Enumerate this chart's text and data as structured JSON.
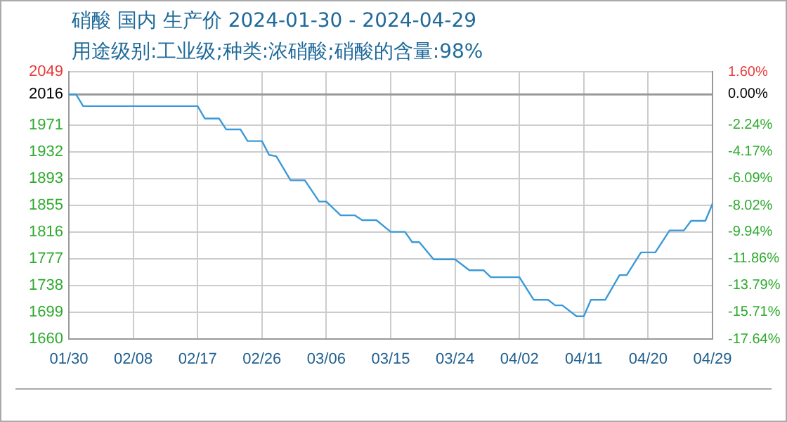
{
  "chart_data": {
    "type": "line",
    "title": "硝酸 国内 生产价 2024-01-30 - 2024-04-29",
    "subtitle": "用途级别:工业级;种类:浓硝酸;硝酸的含量:98%",
    "x": [
      "2024-01-30",
      "2024-01-31",
      "2024-02-01",
      "2024-02-17",
      "2024-02-18",
      "2024-02-20",
      "2024-02-21",
      "2024-02-23",
      "2024-02-24",
      "2024-02-26",
      "2024-02-27",
      "2024-02-28",
      "2024-03-01",
      "2024-03-03",
      "2024-03-05",
      "2024-03-06",
      "2024-03-08",
      "2024-03-10",
      "2024-03-11",
      "2024-03-13",
      "2024-03-15",
      "2024-03-17",
      "2024-03-18",
      "2024-03-19",
      "2024-03-21",
      "2024-03-24",
      "2024-03-26",
      "2024-03-28",
      "2024-03-29",
      "2024-04-02",
      "2024-04-04",
      "2024-04-06",
      "2024-04-07",
      "2024-04-08",
      "2024-04-10",
      "2024-04-11",
      "2024-04-12",
      "2024-04-14",
      "2024-04-16",
      "2024-04-17",
      "2024-04-19",
      "2024-04-21",
      "2024-04-23",
      "2024-04-25",
      "2024-04-26",
      "2024-04-28",
      "2024-04-29"
    ],
    "series": [
      {
        "color": "#3a9ad9",
        "values": [
          2016,
          2016,
          1999,
          1999,
          1981,
          1981,
          1965,
          1965,
          1948,
          1948,
          1928,
          1926,
          1891,
          1891,
          1860,
          1860,
          1840,
          1840,
          1833,
          1833,
          1816,
          1816,
          1801,
          1801,
          1776,
          1776,
          1760,
          1760,
          1750,
          1750,
          1717,
          1717,
          1709,
          1709,
          1693,
          1693,
          1717,
          1717,
          1753,
          1753,
          1786,
          1786,
          1818,
          1818,
          1832,
          1832,
          1857
        ]
      }
    ],
    "xlim": [
      "2024-01-30",
      "2024-04-29"
    ],
    "xticks": [
      {
        "value": "2024-01-30",
        "label": "01/30"
      },
      {
        "value": "2024-02-08",
        "label": "02/08"
      },
      {
        "value": "2024-02-17",
        "label": "02/17"
      },
      {
        "value": "2024-02-26",
        "label": "02/26"
      },
      {
        "value": "2024-03-06",
        "label": "03/06"
      },
      {
        "value": "2024-03-15",
        "label": "03/15"
      },
      {
        "value": "2024-03-24",
        "label": "03/24"
      },
      {
        "value": "2024-04-02",
        "label": "04/02"
      },
      {
        "value": "2024-04-11",
        "label": "04/11"
      },
      {
        "value": "2024-04-20",
        "label": "04/20"
      },
      {
        "value": "2024-04-29",
        "label": "04/29"
      }
    ],
    "ylim": [
      1660,
      2049
    ],
    "yticks": [
      2049,
      2016,
      1971,
      1932,
      1893,
      1855,
      1816,
      1777,
      1738,
      1699,
      1660
    ],
    "y2lim": [
      -17.64,
      1.6
    ],
    "y2ticks": [
      {
        "value": 1.6,
        "label": "1.60%"
      },
      {
        "value": 0,
        "label": "0.00%"
      },
      {
        "value": -2.24,
        "label": "-2.24%"
      },
      {
        "value": -4.17,
        "label": "-4.17%"
      },
      {
        "value": -6.09,
        "label": "-6.09%"
      },
      {
        "value": -8.02,
        "label": "-8.02%"
      },
      {
        "value": -9.94,
        "label": "-9.94%"
      },
      {
        "value": -11.86,
        "label": "-11.86%"
      },
      {
        "value": -13.79,
        "label": "-13.79%"
      },
      {
        "value": -15.71,
        "label": "-15.71%"
      },
      {
        "value": -17.64,
        "label": "-17.64%"
      }
    ],
    "ref_lines": [
      {
        "axis": "y",
        "value": 2016,
        "color": "#999999",
        "line_style": "solid"
      }
    ],
    "grid": true,
    "legend": false,
    "marker": "none",
    "line_style": "solid"
  }
}
